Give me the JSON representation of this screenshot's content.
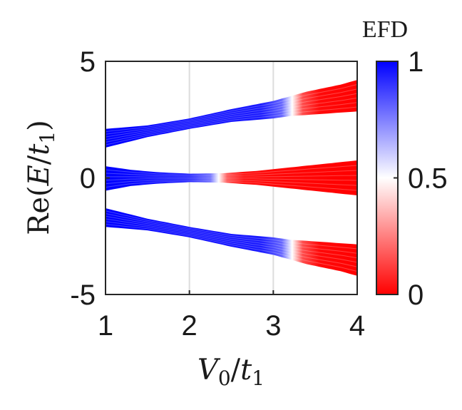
{
  "chart_data": {
    "type": "scatter",
    "title": "",
    "xlabel": "V_0/t_1",
    "xlabel_parts": {
      "sym": "V",
      "sub": "0",
      "slash": "/",
      "sym2": "t",
      "sub2": "1"
    },
    "ylabel": "Re(E/t_1)",
    "ylabel_parts": {
      "pre": "Re(",
      "sym": "E",
      "slash": "/",
      "sym2": "t",
      "sub": "1",
      "post": ")"
    },
    "xlim": [
      1,
      4
    ],
    "ylim": [
      -5,
      5
    ],
    "xticks": [
      "1",
      "2",
      "3",
      "4"
    ],
    "yticks": [
      "5",
      "0",
      "-5"
    ],
    "grid": "vertical",
    "colormap": "red-white-blue",
    "colorbar": {
      "title": "EFD",
      "ticks": [
        "1",
        "0.5",
        "0"
      ],
      "range": [
        0,
        1
      ],
      "low_color": "#ff0000",
      "mid_color": "#ffffff",
      "high_color": "#0000ff"
    },
    "bands": [
      {
        "name": "upper",
        "x": [
          1.0,
          1.5,
          2.0,
          2.5,
          3.0,
          3.2,
          3.4,
          3.6,
          3.8,
          4.0
        ],
        "y_low": [
          1.3,
          1.75,
          2.1,
          2.4,
          2.55,
          2.65,
          2.7,
          2.75,
          2.8,
          2.85
        ],
        "y_high": [
          2.1,
          2.25,
          2.55,
          2.95,
          3.3,
          3.5,
          3.7,
          3.85,
          4.0,
          4.2
        ],
        "efd_transition_x": [
          3.1,
          3.35
        ]
      },
      {
        "name": "middle",
        "x": [
          1.0,
          1.3,
          1.6,
          2.0,
          2.4,
          2.8,
          3.2,
          3.6,
          4.0
        ],
        "y_low": [
          -0.55,
          -0.35,
          -0.25,
          -0.18,
          -0.2,
          -0.3,
          -0.45,
          -0.6,
          -0.75
        ],
        "y_high": [
          0.5,
          0.35,
          0.25,
          0.18,
          0.2,
          0.3,
          0.45,
          0.6,
          0.75
        ],
        "efd_transition_x": [
          2.25,
          2.45
        ]
      },
      {
        "name": "lower",
        "x": [
          1.0,
          1.5,
          2.0,
          2.5,
          3.0,
          3.2,
          3.4,
          3.6,
          3.8,
          4.0
        ],
        "y_low": [
          -2.1,
          -2.25,
          -2.55,
          -2.95,
          -3.3,
          -3.5,
          -3.7,
          -3.85,
          -4.0,
          -4.2
        ],
        "y_high": [
          -1.3,
          -1.75,
          -2.1,
          -2.4,
          -2.55,
          -2.65,
          -2.7,
          -2.75,
          -2.8,
          -2.85
        ],
        "efd_transition_x": [
          3.1,
          3.35
        ]
      }
    ]
  }
}
